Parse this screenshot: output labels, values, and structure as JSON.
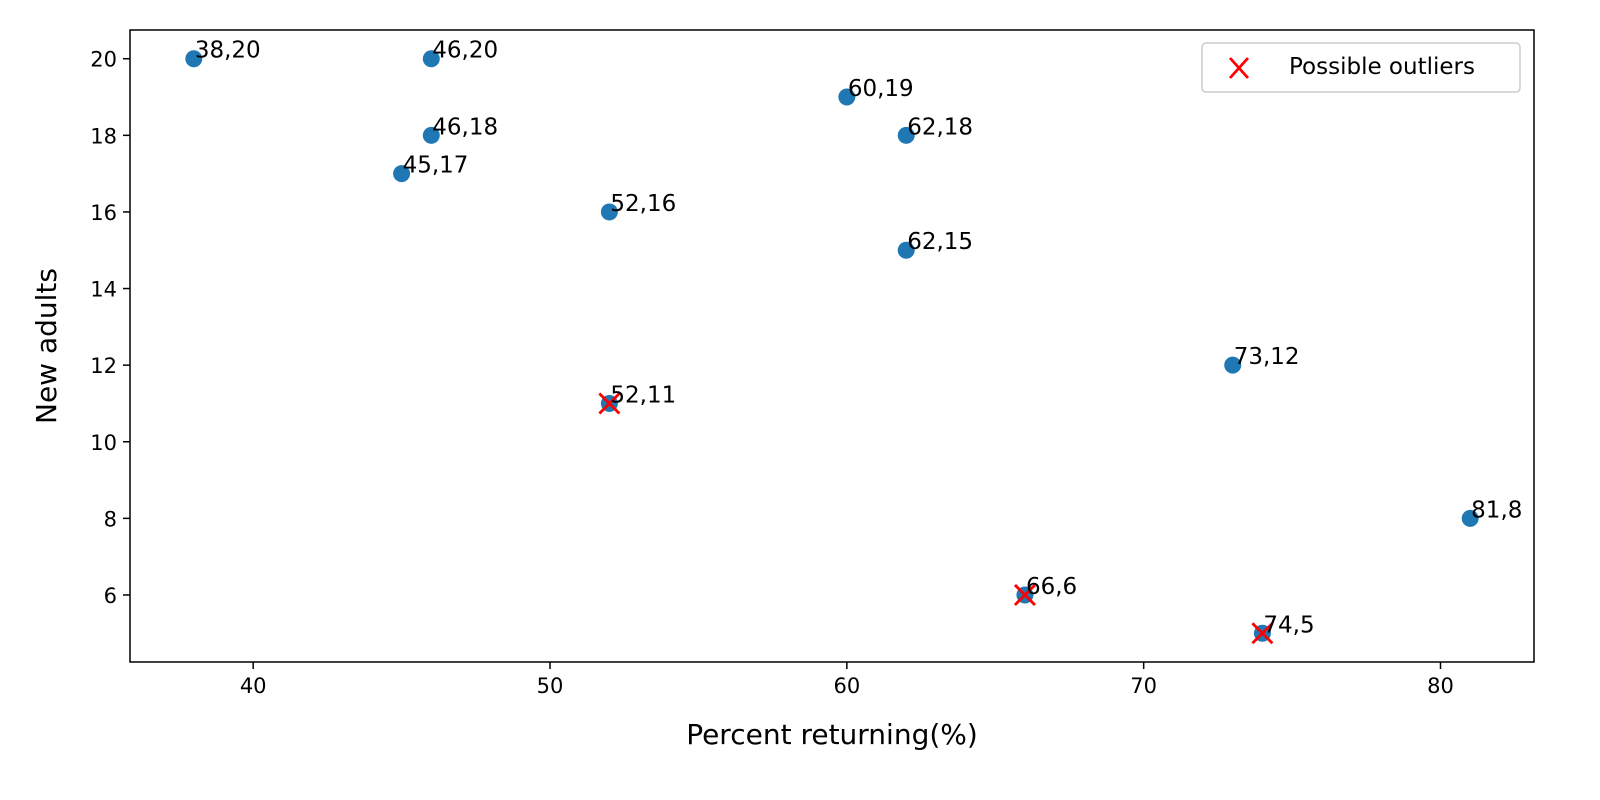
{
  "chart_data": {
    "type": "scatter",
    "title": "",
    "xlabel": "Percent returning(%)",
    "ylabel": "New adults",
    "xlim": [
      35.85,
      83.15
    ],
    "ylim": [
      4.25,
      20.75
    ],
    "xticks": [
      40,
      50,
      60,
      70,
      80
    ],
    "yticks": [
      6,
      8,
      10,
      12,
      14,
      16,
      18,
      20
    ],
    "grid": false,
    "legend_position": "top-right",
    "point_color": "#1f77b4",
    "outlier_color": "#ff0000",
    "points": [
      {
        "x": 38,
        "y": 20,
        "label": "38,20"
      },
      {
        "x": 46,
        "y": 20,
        "label": "46,20"
      },
      {
        "x": 60,
        "y": 19,
        "label": "60,19"
      },
      {
        "x": 46,
        "y": 18,
        "label": "46,18"
      },
      {
        "x": 62,
        "y": 18,
        "label": "62,18"
      },
      {
        "x": 45,
        "y": 17,
        "label": "45,17"
      },
      {
        "x": 52,
        "y": 16,
        "label": "52,16"
      },
      {
        "x": 62,
        "y": 15,
        "label": "62,15"
      },
      {
        "x": 73,
        "y": 12,
        "label": "73,12"
      },
      {
        "x": 52,
        "y": 11,
        "label": "52,11"
      },
      {
        "x": 81,
        "y": 8,
        "label": "81,8"
      },
      {
        "x": 66,
        "y": 6,
        "label": "66,6"
      },
      {
        "x": 74,
        "y": 5,
        "label": "74,5"
      }
    ],
    "outliers": {
      "name": "Possible outliers",
      "points": [
        {
          "x": 52,
          "y": 11
        },
        {
          "x": 66,
          "y": 6
        },
        {
          "x": 74,
          "y": 5
        }
      ]
    }
  }
}
